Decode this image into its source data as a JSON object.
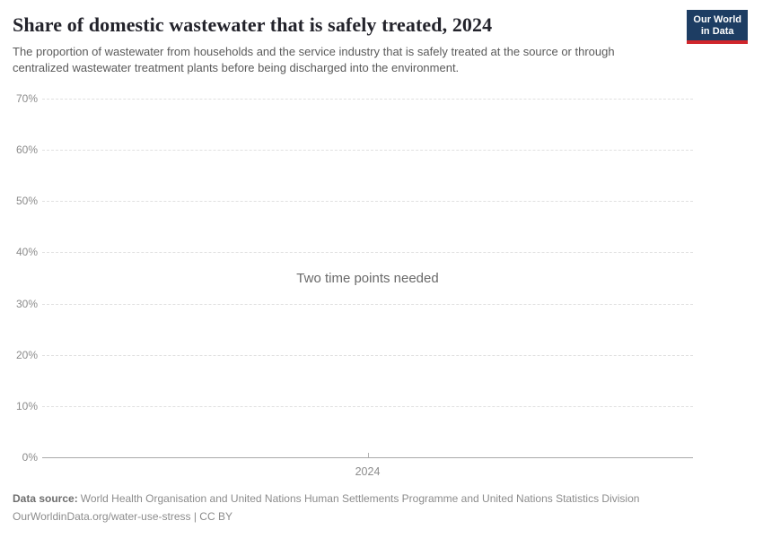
{
  "header": {
    "title": "Share of domestic wastewater that is safely treated, 2024",
    "subtitle": "The proportion of wastewater from households and the service industry that is safely treated at the source or through centralized wastewater treatment plants before being discharged into the environment.",
    "logo": {
      "line1": "Our World",
      "line2": "in Data"
    }
  },
  "chart_data": {
    "type": "line",
    "title": "Share of domestic wastewater that is safely treated, 2024",
    "series": [],
    "message": "Two time points needed",
    "x_ticks": [
      {
        "value": 2024,
        "label": "2024"
      }
    ],
    "y_ticks": [
      {
        "value": 0,
        "label": "0%"
      },
      {
        "value": 10,
        "label": "10%"
      },
      {
        "value": 20,
        "label": "20%"
      },
      {
        "value": 30,
        "label": "30%"
      },
      {
        "value": 40,
        "label": "40%"
      },
      {
        "value": 50,
        "label": "50%"
      },
      {
        "value": 60,
        "label": "60%"
      },
      {
        "value": 70,
        "label": "70%"
      }
    ],
    "ylim": [
      0,
      70
    ],
    "xlabel": "",
    "ylabel": "",
    "grid": true,
    "legend": "none"
  },
  "footer": {
    "source_label": "Data source:",
    "source_text": "World Health Organisation and United Nations Human Settlements Programme and United Nations Statistics Division",
    "attribution": "OurWorldinData.org/water-use-stress | CC BY"
  },
  "colors": {
    "title": "#23232b",
    "subtitle": "#5a5a5a",
    "logo_navy": "#1d3d63",
    "logo_red": "#d0262c",
    "gridline": "#e0e0e0",
    "axis_line": "#a9a9a9",
    "tick_label": "#8c8c8c",
    "message": "#696969",
    "footer_text": "#8c8c8c"
  }
}
